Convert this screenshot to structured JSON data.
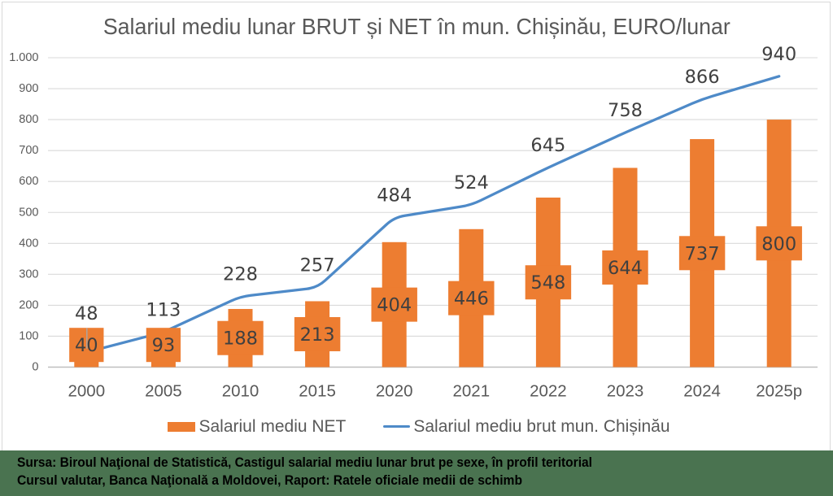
{
  "title": "Salariul mediu lunar BRUT și NET în mun. Chișinău, EURO/lunar",
  "chart_data": {
    "type": "bar",
    "subtype": "bar+line combo",
    "categories": [
      "2000",
      "2005",
      "2010",
      "2015",
      "2020",
      "2021",
      "2022",
      "2023",
      "2024",
      "2025p"
    ],
    "series": [
      {
        "name": "Salariul mediu NET",
        "type": "bar",
        "color": "#ED7D31",
        "values": [
          40,
          93,
          188,
          213,
          404,
          446,
          548,
          644,
          737,
          800
        ]
      },
      {
        "name": "Salariul mediu brut mun. Chișinău",
        "type": "line",
        "color": "#4E8AC8",
        "smoothed": true,
        "values": [
          48,
          113,
          228,
          257,
          484,
          524,
          645,
          758,
          866,
          940
        ]
      }
    ],
    "title": "Salariul mediu lunar BRUT și NET în mun. Chișinău, EURO/lunar",
    "xlabel": "",
    "ylabel": "",
    "ylim": [
      0,
      1000
    ],
    "ytick_step": 100,
    "ytick_labels": [
      "0",
      "100",
      "200",
      "300",
      "400",
      "500",
      "600",
      "700",
      "800",
      "900",
      "1.000"
    ],
    "grid": true,
    "legend_position": "bottom",
    "data_labels": true,
    "data_label_color": "#404040",
    "bar_label_style": "callout box filled with bar color",
    "gridline_color": "#D9D9D9",
    "axis_line_color": "#BFBFBF",
    "tick_label_color": "#595959",
    "title_color": "#595959"
  },
  "legend": {
    "net_label": "Salariul mediu NET",
    "brut_label": "Salariul mediu brut mun. Chișinău"
  },
  "source": {
    "line1": "Sursa: Biroul Naţional de Statistică, Castigul salarial mediu lunar brut pe sexe, în profil teritorial",
    "line2": "Cursul valutar, Banca Naţională a Moldovei, Raport: Ratele oficiale medii de schimb",
    "background": "#4A7350",
    "text_color": "#000000"
  }
}
